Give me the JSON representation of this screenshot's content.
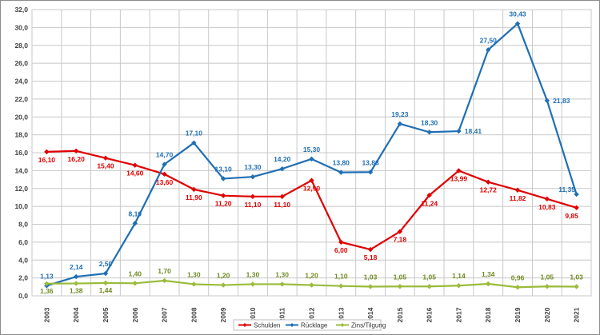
{
  "chart_data": {
    "type": "line",
    "title": "",
    "xlabel": "",
    "ylabel": "",
    "ylim": [
      0,
      32
    ],
    "ytick_step": 2,
    "grid": true,
    "legend_position": "bottom-center",
    "categories": [
      "2003",
      "2004",
      "2005",
      "2006",
      "2007",
      "2008",
      "2009",
      "2010",
      "2011",
      "2012",
      "2013",
      "2014",
      "2015",
      "2016",
      "2017",
      "2018",
      "2019",
      "2020",
      "2021"
    ],
    "series": [
      {
        "name": "Schulden",
        "color": "#e00000",
        "marker": "diamond",
        "values": [
          16.1,
          16.2,
          15.4,
          14.6,
          13.6,
          11.9,
          11.2,
          11.1,
          11.1,
          12.9,
          6.0,
          5.18,
          7.18,
          11.24,
          13.99,
          12.72,
          11.82,
          10.83,
          9.85
        ],
        "labels": [
          "16,10",
          "16,20",
          "15,40",
          "14,60",
          "13,60",
          "11,90",
          "11,20",
          "11,10",
          "11,10",
          "12,90",
          "6,00",
          "5,18",
          "7,18",
          "11,24",
          "13,99",
          "12,72",
          "11,82",
          "10,83",
          "9,85"
        ]
      },
      {
        "name": "Rücklage",
        "color": "#1f6fb4",
        "marker": "diamond",
        "values": [
          1.13,
          2.14,
          2.5,
          8.1,
          14.7,
          17.1,
          13.1,
          13.3,
          14.2,
          15.3,
          13.8,
          13.83,
          19.23,
          18.3,
          18.41,
          27.5,
          30.43,
          21.83,
          11.35
        ],
        "labels": [
          "1,13",
          "2,14",
          "2,50",
          "8,10",
          "14,70",
          "17,10",
          "13,10",
          "13,30",
          "14,20",
          "15,30",
          "13,80",
          "13,83",
          "19,23",
          "18,30",
          "18,41",
          "27,50",
          "30,43",
          "21,83",
          "11,35"
        ]
      },
      {
        "name": "Zins/Tilgung",
        "color": "#9bbb3b",
        "marker": "diamond",
        "values": [
          1.36,
          1.38,
          1.44,
          1.4,
          1.7,
          1.3,
          1.2,
          1.3,
          1.3,
          1.2,
          1.1,
          1.03,
          1.05,
          1.05,
          1.14,
          1.34,
          0.96,
          1.05,
          1.03
        ],
        "labels": [
          "1,36",
          "1,38",
          "1,44",
          "1,40",
          "1,70",
          "1,30",
          "1,20",
          "1,30",
          "1,30",
          "1,20",
          "1,10",
          "1,03",
          "1,05",
          "1,05",
          "1,14",
          "1,34",
          "0,96",
          "1,05",
          "1,03"
        ]
      }
    ]
  }
}
